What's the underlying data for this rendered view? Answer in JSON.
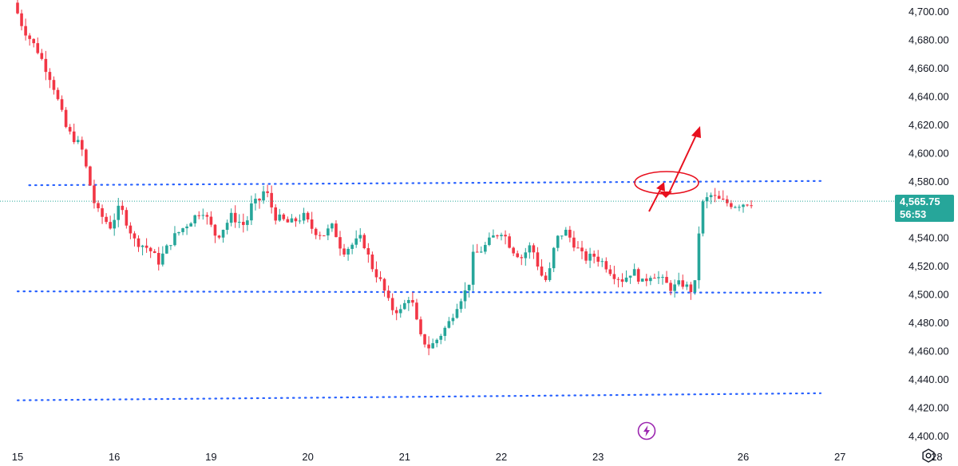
{
  "chart_data": {
    "type": "candlestick",
    "title": "",
    "y_ticks": [
      "4,700.00",
      "4,680.00",
      "4,660.00",
      "4,640.00",
      "4,620.00",
      "4,600.00",
      "4,580.00",
      "4,560.00",
      "4,540.00",
      "4,520.00",
      "4,500.00",
      "4,480.00",
      "4,460.00",
      "4,440.00",
      "4,420.00",
      "4,400.00"
    ],
    "x_ticks": [
      "15",
      "16",
      "19",
      "20",
      "21",
      "22",
      "23",
      "26",
      "27",
      "28"
    ],
    "ylim": [
      4397,
      4707
    ],
    "grid": false,
    "current_price": "4,565.75",
    "countdown": "56:53",
    "up_color": "#26a69a",
    "down_color": "#f23645",
    "line_color": "#2962ff",
    "annotation_color": "#e8101e",
    "anchor_points": [
      [
        15.0,
        4706
      ],
      [
        15.1,
        4688
      ],
      [
        15.25,
        4672
      ],
      [
        15.4,
        4650
      ],
      [
        15.55,
        4616
      ],
      [
        15.7,
        4604
      ],
      [
        15.85,
        4560
      ],
      [
        16.0,
        4548
      ],
      [
        16.1,
        4562
      ],
      [
        16.25,
        4538
      ],
      [
        16.4,
        4532
      ],
      [
        16.5,
        4523
      ],
      [
        16.65,
        4540
      ],
      [
        16.8,
        4550
      ],
      [
        16.95,
        4560
      ],
      [
        17.1,
        4540
      ],
      [
        17.25,
        4555
      ],
      [
        17.4,
        4548
      ],
      [
        17.45,
        4562
      ],
      [
        17.55,
        4567
      ],
      [
        17.6,
        4575
      ],
      [
        17.7,
        4555
      ],
      [
        17.85,
        4550
      ],
      [
        18.0,
        4555
      ],
      [
        18.1,
        4545
      ],
      [
        18.2,
        4542
      ],
      [
        18.3,
        4548
      ],
      [
        18.4,
        4530
      ],
      [
        18.5,
        4535
      ],
      [
        18.6,
        4540
      ],
      [
        18.7,
        4520
      ],
      [
        18.8,
        4508
      ],
      [
        18.9,
        4490
      ],
      [
        19.0,
        4488
      ],
      [
        19.1,
        4500
      ],
      [
        19.2,
        4470
      ],
      [
        19.3,
        4462
      ],
      [
        19.4,
        4470
      ],
      [
        19.5,
        4480
      ],
      [
        19.6,
        4495
      ],
      [
        19.7,
        4505
      ],
      [
        19.75,
        4527
      ],
      [
        19.85,
        4532
      ],
      [
        19.95,
        4540
      ],
      [
        20.05,
        4545
      ],
      [
        20.15,
        4532
      ],
      [
        20.25,
        4526
      ],
      [
        20.35,
        4535
      ],
      [
        20.45,
        4514
      ],
      [
        20.5,
        4510
      ],
      [
        20.55,
        4518
      ],
      [
        20.6,
        4538
      ],
      [
        20.7,
        4545
      ],
      [
        20.8,
        4535
      ],
      [
        20.9,
        4525
      ],
      [
        21.0,
        4527
      ],
      [
        21.1,
        4522
      ],
      [
        21.2,
        4514
      ],
      [
        21.3,
        4510
      ],
      [
        21.4,
        4517
      ],
      [
        21.5,
        4508
      ],
      [
        21.6,
        4515
      ],
      [
        21.7,
        4510
      ],
      [
        21.8,
        4504
      ],
      [
        21.9,
        4508
      ],
      [
        22.0,
        4503
      ],
      [
        22.05,
        4508
      ],
      [
        22.1,
        4562
      ],
      [
        22.2,
        4570
      ],
      [
        22.3,
        4566
      ],
      [
        22.45,
        4563
      ],
      [
        22.6,
        4565
      ]
    ],
    "x_tick_positions": [
      15,
      16,
      17,
      18,
      19,
      20,
      21,
      22.5,
      23.5,
      24.5
    ],
    "lines": [
      {
        "name": "",
        "from": [
          15.12,
          4577
        ],
        "to": [
          23.3,
          4580
        ]
      },
      {
        "name": "",
        "from": [
          15.0,
          4502
        ],
        "to": [
          23.3,
          4501
        ]
      },
      {
        "name": "",
        "from": [
          15.0,
          4425
        ],
        "to": [
          23.3,
          4430
        ]
      }
    ]
  },
  "icons": {
    "settings": "settings-gear-icon",
    "flash": "lightning-icon"
  }
}
